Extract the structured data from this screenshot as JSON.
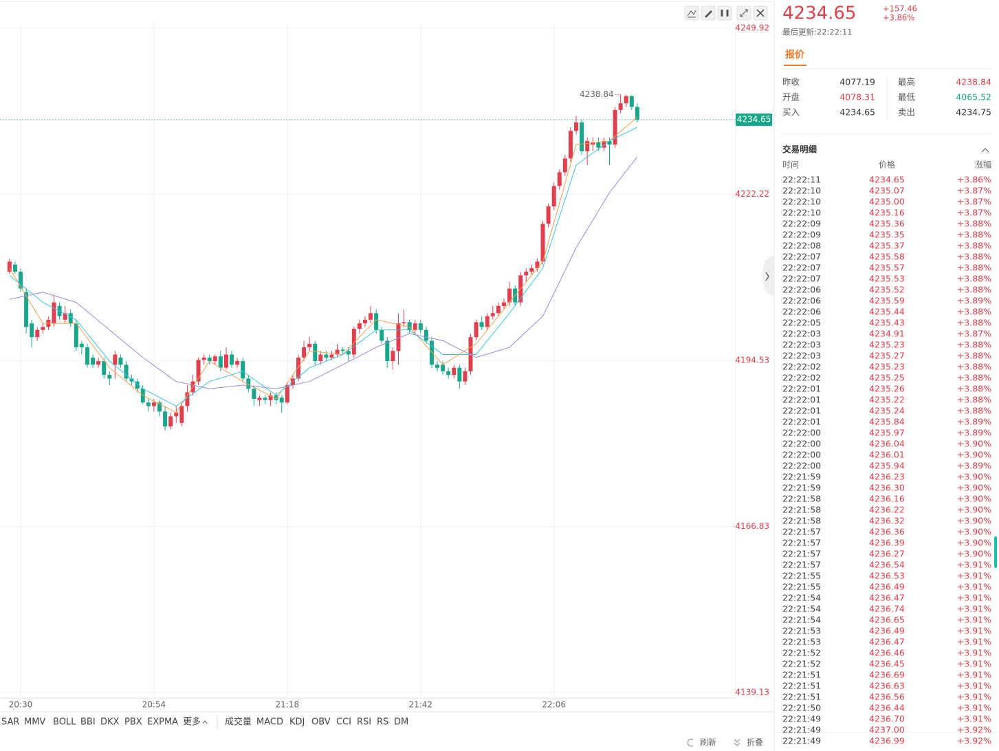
{
  "chart_data": {
    "type": "candlestick",
    "categories": [
      null,
      null,
      "20:30",
      null,
      null,
      null,
      null,
      null,
      null,
      null,
      null,
      null,
      null,
      null,
      null,
      null,
      null,
      null,
      null,
      null,
      null,
      null,
      null,
      null,
      null,
      null,
      "20:54",
      null,
      null,
      null,
      null,
      null,
      null,
      null,
      null,
      null,
      null,
      null,
      null,
      null,
      null,
      null,
      null,
      null,
      null,
      null,
      null,
      null,
      null,
      null,
      "21:18",
      null,
      null,
      null,
      null,
      null,
      null,
      null,
      null,
      null,
      null,
      null,
      null,
      null,
      null,
      null,
      null,
      null,
      null,
      null,
      null,
      null,
      null,
      null,
      "21:42",
      null,
      null,
      null,
      null,
      null,
      null,
      null,
      null,
      null,
      null,
      null,
      null,
      null,
      null,
      null,
      null,
      null,
      null,
      null,
      null,
      null,
      null,
      null,
      "22:06",
      null,
      null,
      null,
      null,
      null,
      null,
      null,
      null,
      null,
      null,
      null,
      null,
      null,
      null,
      null
    ],
    "open": [
      4209.3,
      4210.5,
      4209.3,
      4205.9,
      4200.7,
      4198.4,
      4199.6,
      4200.1,
      4200.7,
      4203.6,
      4201.3,
      4202.4,
      4200.7,
      4197.3,
      4196.7,
      4195.0,
      4193.8,
      4194.4,
      4192.1,
      4193.8,
      4195.0,
      4193.8,
      4191.5,
      4191.0,
      4189.8,
      4187.5,
      4186.9,
      4187.5,
      4186.0,
      4183.5,
      4185.2,
      4184.1,
      4186.9,
      4189.2,
      4191.0,
      4194.6,
      4195.0,
      4194.4,
      4195.2,
      4193.3,
      4195.5,
      4193.8,
      4194.4,
      4191.5,
      4189.8,
      4187.9,
      4188.3,
      4187.9,
      4188.7,
      4188.3,
      4187.5,
      4190.4,
      4191.5,
      4195.0,
      4196.7,
      4197.3,
      4194.4,
      4195.5,
      4195.0,
      4195.5,
      4196.3,
      4196.1,
      4195.5,
      4199.8,
      4200.7,
      4201.3,
      4202.4,
      4199.6,
      4197.8,
      4194.4,
      4196.1,
      4200.7,
      4200.9,
      4199.6,
      4200.7,
      4199.6,
      4197.8,
      4193.8,
      4193.8,
      4192.7,
      4192.1,
      4193.3,
      4191.0,
      4192.7,
      4198.4,
      4200.9,
      4200.1,
      4201.9,
      4202.4,
      4203.6,
      4204.2,
      4206.5,
      4204.2,
      4208.7,
      4209.3,
      4209.9,
      4211.0,
      4217.3,
      4220.2,
      4223.6,
      4225.9,
      4228.2,
      4232.8,
      4234.2,
      4229.4,
      4230.5,
      4230.9,
      4230.0,
      4231.1,
      4230.5,
      4236.3,
      4237.4,
      4238.6,
      4236.8
    ],
    "high": [
      4211.5,
      4211.0,
      4209.9,
      4206.5,
      4201.3,
      4200.1,
      4200.7,
      4201.9,
      4205.3,
      4204.2,
      4203.6,
      4203.0,
      4201.3,
      4197.8,
      4197.3,
      4195.5,
      4195.0,
      4195.0,
      4192.7,
      4196.1,
      4195.5,
      4194.4,
      4192.1,
      4191.5,
      4190.4,
      4188.1,
      4188.1,
      4187.9,
      4186.9,
      4185.8,
      4186.9,
      4187.5,
      4190.4,
      4192.1,
      4195.0,
      4195.5,
      4195.5,
      4195.5,
      4196.1,
      4196.7,
      4196.1,
      4195.0,
      4195.0,
      4192.1,
      4190.4,
      4188.7,
      4188.7,
      4189.2,
      4189.2,
      4188.7,
      4190.9,
      4192.1,
      4195.5,
      4197.8,
      4198.4,
      4197.8,
      4196.1,
      4196.1,
      4196.1,
      4197.3,
      4196.7,
      4196.7,
      4200.1,
      4201.3,
      4201.9,
      4203.6,
      4203.0,
      4200.1,
      4198.4,
      4196.7,
      4202.4,
      4203.0,
      4201.3,
      4201.3,
      4201.3,
      4200.1,
      4198.4,
      4194.4,
      4194.4,
      4193.3,
      4193.8,
      4193.8,
      4193.3,
      4199.0,
      4201.3,
      4201.9,
      4202.4,
      4203.6,
      4204.2,
      4204.8,
      4207.6,
      4207.0,
      4209.3,
      4209.9,
      4210.5,
      4211.5,
      4217.8,
      4220.7,
      4224.2,
      4226.4,
      4228.8,
      4233.4,
      4235.3,
      4234.7,
      4231.7,
      4231.7,
      4231.7,
      4231.7,
      4231.7,
      4236.8,
      4238.84,
      4238.8,
      4238.7,
      4237.4
    ],
    "low": [
      4209.0,
      4209.0,
      4206.0,
      4199.0,
      4196.7,
      4197.8,
      4199.0,
      4199.6,
      4200.1,
      4201.3,
      4200.7,
      4200.1,
      4196.1,
      4195.5,
      4193.3,
      4193.3,
      4193.3,
      4191.5,
      4190.4,
      4191.5,
      4193.3,
      4191.0,
      4190.4,
      4189.2,
      4187.2,
      4186.0,
      4186.0,
      4185.2,
      4182.8,
      4183.0,
      4184.1,
      4183.5,
      4186.0,
      4188.7,
      4190.4,
      4193.8,
      4193.8,
      4193.8,
      4192.7,
      4193.0,
      4193.3,
      4193.3,
      4191.0,
      4189.2,
      4186.9,
      4186.9,
      4187.2,
      4186.9,
      4187.2,
      4185.8,
      4187.2,
      4189.8,
      4191.0,
      4194.4,
      4196.1,
      4193.8,
      4193.8,
      4194.4,
      4194.6,
      4195.0,
      4195.5,
      4194.4,
      4195.0,
      4199.0,
      4200.1,
      4200.7,
      4199.0,
      4197.3,
      4193.3,
      4193.0,
      4193.8,
      4200.1,
      4199.0,
      4199.0,
      4199.0,
      4197.3,
      4193.3,
      4192.7,
      4192.1,
      4191.5,
      4191.5,
      4189.8,
      4190.4,
      4192.1,
      4197.8,
      4199.6,
      4199.6,
      4201.3,
      4201.9,
      4203.0,
      4203.6,
      4203.6,
      4203.6,
      4207.6,
      4208.7,
      4209.3,
      4210.5,
      4216.7,
      4219.6,
      4223.0,
      4225.3,
      4227.6,
      4232.2,
      4228.8,
      4227.1,
      4229.4,
      4229.4,
      4229.4,
      4227.1,
      4230.0,
      4235.7,
      4236.8,
      4236.3,
      4234.2
    ],
    "close": [
      4211.0,
      4209.3,
      4206.5,
      4200.1,
      4198.4,
      4199.6,
      4200.1,
      4201.3,
      4204.2,
      4201.9,
      4202.4,
      4200.7,
      4196.7,
      4196.7,
      4193.8,
      4193.8,
      4194.4,
      4192.1,
      4191.5,
      4195.5,
      4193.8,
      4191.5,
      4191.0,
      4189.8,
      4187.5,
      4186.9,
      4187.5,
      4186.0,
      4183.5,
      4185.2,
      4185.8,
      4186.9,
      4189.2,
      4191.0,
      4194.6,
      4195.0,
      4194.4,
      4195.2,
      4193.3,
      4195.5,
      4193.8,
      4194.4,
      4191.5,
      4189.8,
      4188.1,
      4188.3,
      4187.9,
      4188.7,
      4187.9,
      4187.5,
      4190.4,
      4191.5,
      4195.0,
      4196.7,
      4197.3,
      4194.4,
      4195.5,
      4195.0,
      4195.5,
      4196.3,
      4196.1,
      4195.5,
      4199.8,
      4200.7,
      4201.3,
      4202.4,
      4199.6,
      4197.8,
      4194.4,
      4196.1,
      4200.7,
      4200.9,
      4199.6,
      4200.7,
      4199.6,
      4197.8,
      4193.8,
      4193.3,
      4192.7,
      4192.1,
      4193.3,
      4191.0,
      4192.7,
      4198.4,
      4200.9,
      4200.1,
      4201.9,
      4202.4,
      4203.6,
      4204.2,
      4206.5,
      4204.2,
      4208.7,
      4209.3,
      4209.9,
      4211.0,
      4217.3,
      4220.2,
      4223.6,
      4225.9,
      4228.2,
      4232.8,
      4234.2,
      4229.4,
      4231.1,
      4230.9,
      4230.0,
      4231.1,
      4230.5,
      4236.3,
      4237.4,
      4238.6,
      4236.8,
      4234.65
    ],
    "up_color": "#e0404e",
    "down_color": "#1aa68a",
    "ma_lines": [
      {
        "color": "#f5a04c",
        "x": [
          0,
          6,
          12,
          18,
          24,
          30,
          36,
          42,
          48,
          54,
          60,
          66,
          72,
          78,
          84,
          90,
          96,
          102,
          108,
          113
        ],
        "values": [
          4209.9,
          4200.7,
          4200.7,
          4193.3,
          4188.7,
          4185.8,
          4194.4,
          4191.0,
          4188.1,
          4196.1,
          4195.5,
          4201.3,
          4200.1,
          4193.8,
          4197.3,
          4204.2,
          4211.0,
          4230.5,
          4231.1,
          4235.1
        ]
      },
      {
        "color": "#3cc4e0",
        "x": [
          0,
          6,
          12,
          18,
          24,
          30,
          36,
          42,
          48,
          54,
          60,
          66,
          72,
          78,
          84,
          90,
          96,
          102,
          108,
          113
        ],
        "values": [
          4208.7,
          4204.2,
          4201.3,
          4194.4,
          4189.8,
          4186.9,
          4191.0,
          4192.7,
          4188.7,
          4193.3,
          4195.5,
          4199.6,
          4199.6,
          4195.5,
          4195.5,
          4202.4,
          4209.9,
          4227.1,
          4231.1,
          4233.4
        ]
      },
      {
        "color": "#9c88d8",
        "x": [
          0,
          6,
          12,
          18,
          24,
          30,
          36,
          42,
          48,
          54,
          60,
          66,
          72,
          78,
          84,
          90,
          96,
          102,
          108,
          113
        ],
        "values": [
          4204.7,
          4205.9,
          4204.2,
          4199.6,
          4195.0,
          4191.0,
          4189.8,
          4190.4,
          4189.8,
          4191.0,
          4193.8,
          4196.7,
          4199.0,
          4197.8,
          4195.0,
          4196.7,
          4201.9,
          4213.3,
          4222.5,
          4228.5
        ]
      }
    ],
    "ylim": [
      4139.13,
      4249.92
    ],
    "yticks": [
      4139.13,
      4166.83,
      4194.53,
      4222.22,
      4249.92
    ],
    "grid": true,
    "last_price": 4234.65,
    "max_high": 4238.84,
    "max_high_index": 110
  },
  "toolbar": {
    "main": [
      "SAR",
      "MMV",
      "BOLL",
      "BBI",
      "DKX",
      "PBX",
      "EXPMA",
      "更多"
    ],
    "sub": [
      "成交量",
      "MACD",
      "KDJ",
      "OBV",
      "CCI",
      "RSI",
      "RS",
      "DM"
    ],
    "refresh": "刷新",
    "collapse": "折叠"
  },
  "quote": {
    "price": "4234.65",
    "change": "+157.46",
    "change_pct": "+3.86%",
    "updated": "最后更新:22:22:11",
    "tab": "报价",
    "items": [
      {
        "label": "昨收",
        "value": "4077.19",
        "color": "#333333"
      },
      {
        "label": "最高",
        "value": "4238.84",
        "color": "#e0404e"
      },
      {
        "label": "开盘",
        "value": "4078.31",
        "color": "#e0404e"
      },
      {
        "label": "最低",
        "value": "4065.52",
        "color": "#1aa68a"
      },
      {
        "label": "买入",
        "value": "4234.65",
        "color": "#333333"
      },
      {
        "label": "卖出",
        "value": "4234.75",
        "color": "#333333"
      }
    ]
  },
  "trades": {
    "title": "交易明细",
    "columns": [
      "时间",
      "价格",
      "涨幅"
    ],
    "rows": [
      [
        "22:22:11",
        "4234.65",
        "+3.86%"
      ],
      [
        "22:22:10",
        "4235.07",
        "+3.87%"
      ],
      [
        "22:22:10",
        "4235.00",
        "+3.87%"
      ],
      [
        "22:22:10",
        "4235.16",
        "+3.87%"
      ],
      [
        "22:22:09",
        "4235.36",
        "+3.88%"
      ],
      [
        "22:22:09",
        "4235.35",
        "+3.88%"
      ],
      [
        "22:22:08",
        "4235.37",
        "+3.88%"
      ],
      [
        "22:22:07",
        "4235.58",
        "+3.88%"
      ],
      [
        "22:22:07",
        "4235.57",
        "+3.88%"
      ],
      [
        "22:22:07",
        "4235.53",
        "+3.88%"
      ],
      [
        "22:22:06",
        "4235.52",
        "+3.88%"
      ],
      [
        "22:22:06",
        "4235.59",
        "+3.89%"
      ],
      [
        "22:22:06",
        "4235.44",
        "+3.88%"
      ],
      [
        "22:22:05",
        "4235.43",
        "+3.88%"
      ],
      [
        "22:22:03",
        "4234.91",
        "+3.87%"
      ],
      [
        "22:22:03",
        "4235.23",
        "+3.88%"
      ],
      [
        "22:22:03",
        "4235.27",
        "+3.88%"
      ],
      [
        "22:22:02",
        "4235.23",
        "+3.88%"
      ],
      [
        "22:22:02",
        "4235.25",
        "+3.88%"
      ],
      [
        "22:22:01",
        "4235.26",
        "+3.88%"
      ],
      [
        "22:22:01",
        "4235.22",
        "+3.88%"
      ],
      [
        "22:22:01",
        "4235.24",
        "+3.88%"
      ],
      [
        "22:22:01",
        "4235.84",
        "+3.89%"
      ],
      [
        "22:22:00",
        "4235.97",
        "+3.89%"
      ],
      [
        "22:22:00",
        "4236.04",
        "+3.90%"
      ],
      [
        "22:22:00",
        "4236.01",
        "+3.90%"
      ],
      [
        "22:22:00",
        "4235.94",
        "+3.89%"
      ],
      [
        "22:21:59",
        "4236.23",
        "+3.90%"
      ],
      [
        "22:21:59",
        "4236.30",
        "+3.90%"
      ],
      [
        "22:21:58",
        "4236.16",
        "+3.90%"
      ],
      [
        "22:21:58",
        "4236.22",
        "+3.90%"
      ],
      [
        "22:21:58",
        "4236.32",
        "+3.90%"
      ],
      [
        "22:21:57",
        "4236.36",
        "+3.90%"
      ],
      [
        "22:21:57",
        "4236.39",
        "+3.90%"
      ],
      [
        "22:21:57",
        "4236.27",
        "+3.90%"
      ],
      [
        "22:21:57",
        "4236.54",
        "+3.91%"
      ],
      [
        "22:21:55",
        "4236.53",
        "+3.91%"
      ],
      [
        "22:21:55",
        "4236.49",
        "+3.91%"
      ],
      [
        "22:21:54",
        "4236.47",
        "+3.91%"
      ],
      [
        "22:21:54",
        "4236.74",
        "+3.91%"
      ],
      [
        "22:21:54",
        "4236.65",
        "+3.91%"
      ],
      [
        "22:21:53",
        "4236.49",
        "+3.91%"
      ],
      [
        "22:21:53",
        "4236.47",
        "+3.91%"
      ],
      [
        "22:21:52",
        "4236.46",
        "+3.91%"
      ],
      [
        "22:21:52",
        "4236.45",
        "+3.91%"
      ],
      [
        "22:21:51",
        "4236.69",
        "+3.91%"
      ],
      [
        "22:21:51",
        "4236.63",
        "+3.91%"
      ],
      [
        "22:21:51",
        "4236.56",
        "+3.91%"
      ],
      [
        "22:21:50",
        "4236.44",
        "+3.91%"
      ],
      [
        "22:21:49",
        "4236.70",
        "+3.91%"
      ],
      [
        "22:21:49",
        "4237.00",
        "+3.92%"
      ],
      [
        "22:21:49",
        "4236.99",
        "+3.92%"
      ]
    ]
  }
}
